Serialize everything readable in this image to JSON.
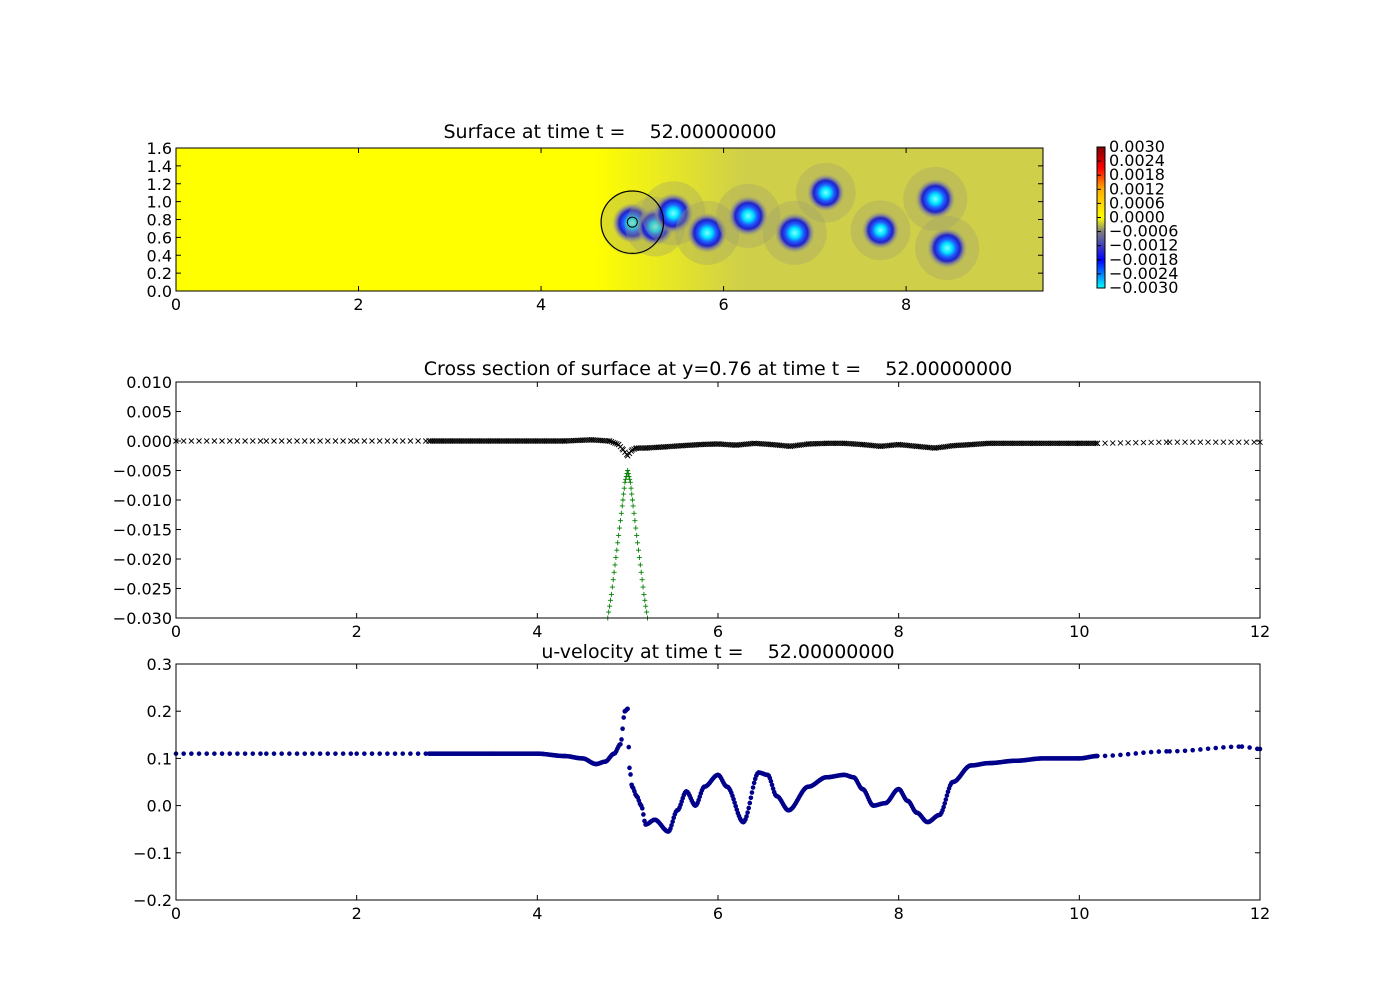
{
  "chart_data": [
    {
      "type": "heatmap",
      "title": "Surface at time t =    52.00000000",
      "xlim": [
        0,
        9.5
      ],
      "ylim": [
        0,
        1.6
      ],
      "xticks": [
        "0",
        "2",
        "4",
        "6",
        "8"
      ],
      "yticks": [
        "0.0",
        "0.2",
        "0.4",
        "0.6",
        "0.8",
        "1.0",
        "1.2",
        "1.4",
        "1.6"
      ],
      "colorbar": {
        "range": [
          -0.003,
          0.003
        ],
        "ticks": [
          "0.0030",
          "0.0024",
          "0.0018",
          "0.0012",
          "0.0006",
          "0.0000",
          "−0.0006",
          "−0.0012",
          "−0.0018",
          "−0.0024",
          "−0.0030"
        ],
        "colors": [
          "#00ffff",
          "#0000ff",
          "#7f7f7f",
          "#ffff00",
          "#ff0000",
          "#7f0000"
        ]
      },
      "background_field": {
        "left_region_color": "#ffff00",
        "right_region_color": "#cfcf4a",
        "transition_x": [
          4.6,
          6.2
        ],
        "value_range": [
          -0.0008,
          0.0003
        ]
      },
      "vortices": [
        {
          "x": 5.0,
          "y": 0.76,
          "value": -0.003
        },
        {
          "x": 5.25,
          "y": 0.72,
          "value": -0.0025
        },
        {
          "x": 5.45,
          "y": 0.87,
          "value": -0.003
        },
        {
          "x": 5.82,
          "y": 0.65,
          "value": -0.003
        },
        {
          "x": 6.27,
          "y": 0.84,
          "value": -0.003
        },
        {
          "x": 6.78,
          "y": 0.65,
          "value": -0.003
        },
        {
          "x": 7.12,
          "y": 1.1,
          "value": -0.0025
        },
        {
          "x": 7.72,
          "y": 0.68,
          "value": -0.0025
        },
        {
          "x": 8.32,
          "y": 1.03,
          "value": -0.003
        },
        {
          "x": 8.45,
          "y": 0.48,
          "value": -0.003
        }
      ],
      "annotation_circle": {
        "x": 5.0,
        "y": 0.77,
        "r": 0.36
      },
      "color_scheme": "jet-like"
    },
    {
      "type": "scatter",
      "title": "Cross section of surface at y=0.76 at time t =    52.00000000",
      "xlim": [
        0,
        12
      ],
      "ylim": [
        -0.03,
        0.01
      ],
      "xticks": [
        "0",
        "2",
        "4",
        "6",
        "8",
        "10",
        "12"
      ],
      "yticks": [
        "0.010",
        "0.005",
        "0.000",
        "−0.005",
        "−0.010",
        "−0.015",
        "−0.020",
        "−0.025",
        "−0.030"
      ],
      "series": [
        {
          "marker": "x",
          "color": "#000000",
          "x": [
            0,
            1,
            2,
            2.8,
            3,
            3.5,
            4,
            4.3,
            4.6,
            4.8,
            4.9,
            4.95,
            5.0,
            5.05,
            5.1,
            5.2,
            5.4,
            5.6,
            5.8,
            6.0,
            6.2,
            6.4,
            6.6,
            6.8,
            7.0,
            7.2,
            7.4,
            7.6,
            7.8,
            8.0,
            8.2,
            8.4,
            8.6,
            8.8,
            9.0,
            9.5,
            10.0,
            10.2,
            11,
            12
          ],
          "y": [
            0.0,
            0.0,
            0.0,
            0.0,
            0.0,
            0.0,
            0.0,
            0.0,
            0.0002,
            0.0,
            -0.0006,
            -0.0015,
            -0.0025,
            -0.0015,
            -0.0012,
            -0.0012,
            -0.001,
            -0.0008,
            -0.0006,
            -0.0005,
            -0.0007,
            -0.0004,
            -0.0006,
            -0.0009,
            -0.0005,
            -0.0004,
            -0.0004,
            -0.0006,
            -0.0009,
            -0.0006,
            -0.0009,
            -0.0012,
            -0.0008,
            -0.0006,
            -0.0004,
            -0.0004,
            -0.0004,
            -0.0004,
            -0.0002,
            -0.0002
          ]
        },
        {
          "marker": "+",
          "color": "#007f00",
          "x": [
            4.78,
            4.82,
            4.86,
            4.9,
            4.94,
            4.97,
            5.0,
            5.03,
            5.06,
            5.1,
            5.14,
            5.18,
            5.22
          ],
          "y": [
            -0.03,
            -0.026,
            -0.021,
            -0.016,
            -0.011,
            -0.007,
            -0.005,
            -0.007,
            -0.011,
            -0.016,
            -0.021,
            -0.026,
            -0.03
          ]
        }
      ]
    },
    {
      "type": "scatter",
      "title": "u-velocity at time t =    52.00000000",
      "xlim": [
        0,
        12
      ],
      "ylim": [
        -0.2,
        0.3
      ],
      "xticks": [
        "0",
        "2",
        "4",
        "6",
        "8",
        "10",
        "12"
      ],
      "yticks": [
        "0.3",
        "0.2",
        "0.1",
        "0.0",
        "−0.1",
        "−0.2"
      ],
      "series": [
        {
          "marker": "o",
          "color": "#00008b",
          "x": [
            0,
            1,
            2,
            2.8,
            3.5,
            4.0,
            4.3,
            4.5,
            4.65,
            4.75,
            4.85,
            4.92,
            4.97,
            5.0,
            5.02,
            5.05,
            5.1,
            5.15,
            5.2,
            5.3,
            5.45,
            5.55,
            5.65,
            5.75,
            5.85,
            6.0,
            6.1,
            6.28,
            6.45,
            6.55,
            6.65,
            6.78,
            7.0,
            7.2,
            7.4,
            7.5,
            7.6,
            7.72,
            7.85,
            8.0,
            8.1,
            8.2,
            8.32,
            8.45,
            8.6,
            8.8,
            9.0,
            9.3,
            9.6,
            10.0,
            10.2,
            11,
            11.8,
            12
          ],
          "y": [
            0.11,
            0.11,
            0.11,
            0.11,
            0.11,
            0.11,
            0.105,
            0.1,
            0.088,
            0.093,
            0.11,
            0.13,
            0.2,
            0.205,
            0.08,
            0.04,
            0.02,
            0.0,
            -0.04,
            -0.03,
            -0.055,
            -0.01,
            0.03,
            0.0,
            0.04,
            0.065,
            0.04,
            -0.035,
            0.07,
            0.065,
            0.02,
            -0.01,
            0.04,
            0.06,
            0.065,
            0.06,
            0.035,
            0.0,
            0.005,
            0.035,
            0.01,
            -0.015,
            -0.035,
            -0.02,
            0.05,
            0.085,
            0.09,
            0.095,
            0.1,
            0.1,
            0.105,
            0.115,
            0.125,
            0.12
          ]
        }
      ]
    }
  ]
}
